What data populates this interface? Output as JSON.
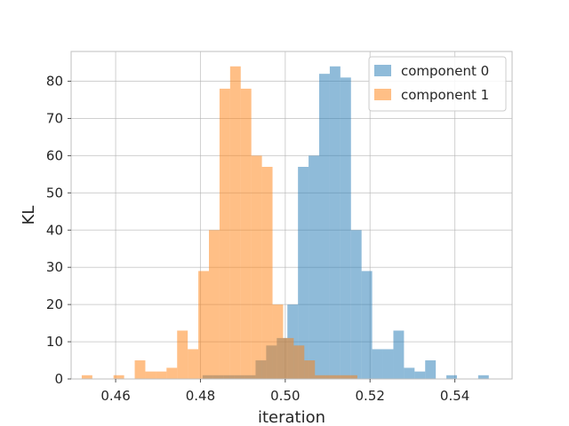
{
  "chart_data": {
    "type": "histogram",
    "xlabel": "iteration",
    "ylabel": "KL",
    "xlim": [
      0.4495,
      0.5535
    ],
    "ylim": [
      0,
      88
    ],
    "xticks": [
      0.46,
      0.48,
      0.5,
      0.52,
      0.54
    ],
    "xtick_labels": [
      "0.46",
      "0.48",
      "0.50",
      "0.52",
      "0.54"
    ],
    "yticks": [
      0,
      10,
      20,
      30,
      40,
      50,
      60,
      70,
      80
    ],
    "ytick_labels": [
      "0",
      "10",
      "20",
      "30",
      "40",
      "50",
      "60",
      "70",
      "80"
    ],
    "grid": true,
    "legend_position": "top-right",
    "series": [
      {
        "name": "component 0",
        "color": "#1f77b4",
        "alpha": 0.5,
        "bins": [
          {
            "x0": 0.4805,
            "x1": 0.483,
            "y": 1
          },
          {
            "x0": 0.483,
            "x1": 0.4855,
            "y": 1
          },
          {
            "x0": 0.4855,
            "x1": 0.488,
            "y": 1
          },
          {
            "x0": 0.488,
            "x1": 0.4905,
            "y": 1
          },
          {
            "x0": 0.4905,
            "x1": 0.493,
            "y": 1
          },
          {
            "x0": 0.493,
            "x1": 0.4955,
            "y": 5
          },
          {
            "x0": 0.4955,
            "x1": 0.498,
            "y": 9
          },
          {
            "x0": 0.498,
            "x1": 0.5005,
            "y": 11
          },
          {
            "x0": 0.5005,
            "x1": 0.503,
            "y": 20
          },
          {
            "x0": 0.503,
            "x1": 0.5055,
            "y": 57
          },
          {
            "x0": 0.5055,
            "x1": 0.508,
            "y": 60
          },
          {
            "x0": 0.508,
            "x1": 0.5105,
            "y": 82
          },
          {
            "x0": 0.5105,
            "x1": 0.513,
            "y": 84
          },
          {
            "x0": 0.513,
            "x1": 0.5155,
            "y": 81
          },
          {
            "x0": 0.5155,
            "x1": 0.518,
            "y": 40
          },
          {
            "x0": 0.518,
            "x1": 0.5205,
            "y": 29
          },
          {
            "x0": 0.5205,
            "x1": 0.523,
            "y": 8
          },
          {
            "x0": 0.523,
            "x1": 0.5255,
            "y": 8
          },
          {
            "x0": 0.5255,
            "x1": 0.528,
            "y": 13
          },
          {
            "x0": 0.528,
            "x1": 0.5305,
            "y": 3
          },
          {
            "x0": 0.5305,
            "x1": 0.533,
            "y": 2
          },
          {
            "x0": 0.533,
            "x1": 0.5355,
            "y": 5
          },
          {
            "x0": 0.538,
            "x1": 0.5405,
            "y": 1
          },
          {
            "x0": 0.5455,
            "x1": 0.548,
            "y": 1
          }
        ]
      },
      {
        "name": "component 1",
        "color": "#ff7f0e",
        "alpha": 0.5,
        "bins": [
          {
            "x0": 0.452,
            "x1": 0.4545,
            "y": 1
          },
          {
            "x0": 0.4595,
            "x1": 0.462,
            "y": 1
          },
          {
            "x0": 0.4645,
            "x1": 0.467,
            "y": 5
          },
          {
            "x0": 0.467,
            "x1": 0.4695,
            "y": 2
          },
          {
            "x0": 0.4695,
            "x1": 0.472,
            "y": 2
          },
          {
            "x0": 0.472,
            "x1": 0.4745,
            "y": 3
          },
          {
            "x0": 0.4745,
            "x1": 0.477,
            "y": 13
          },
          {
            "x0": 0.477,
            "x1": 0.4795,
            "y": 8
          },
          {
            "x0": 0.4795,
            "x1": 0.482,
            "y": 29
          },
          {
            "x0": 0.482,
            "x1": 0.4845,
            "y": 40
          },
          {
            "x0": 0.4845,
            "x1": 0.487,
            "y": 78
          },
          {
            "x0": 0.487,
            "x1": 0.4895,
            "y": 84
          },
          {
            "x0": 0.4895,
            "x1": 0.492,
            "y": 78
          },
          {
            "x0": 0.492,
            "x1": 0.4945,
            "y": 60
          },
          {
            "x0": 0.4945,
            "x1": 0.497,
            "y": 57
          },
          {
            "x0": 0.497,
            "x1": 0.4995,
            "y": 20
          },
          {
            "x0": 0.4995,
            "x1": 0.502,
            "y": 11
          },
          {
            "x0": 0.502,
            "x1": 0.5045,
            "y": 9
          },
          {
            "x0": 0.5045,
            "x1": 0.507,
            "y": 5
          },
          {
            "x0": 0.507,
            "x1": 0.5095,
            "y": 1
          },
          {
            "x0": 0.5095,
            "x1": 0.512,
            "y": 1
          },
          {
            "x0": 0.512,
            "x1": 0.5145,
            "y": 1
          },
          {
            "x0": 0.5145,
            "x1": 0.517,
            "y": 1
          }
        ]
      }
    ]
  }
}
